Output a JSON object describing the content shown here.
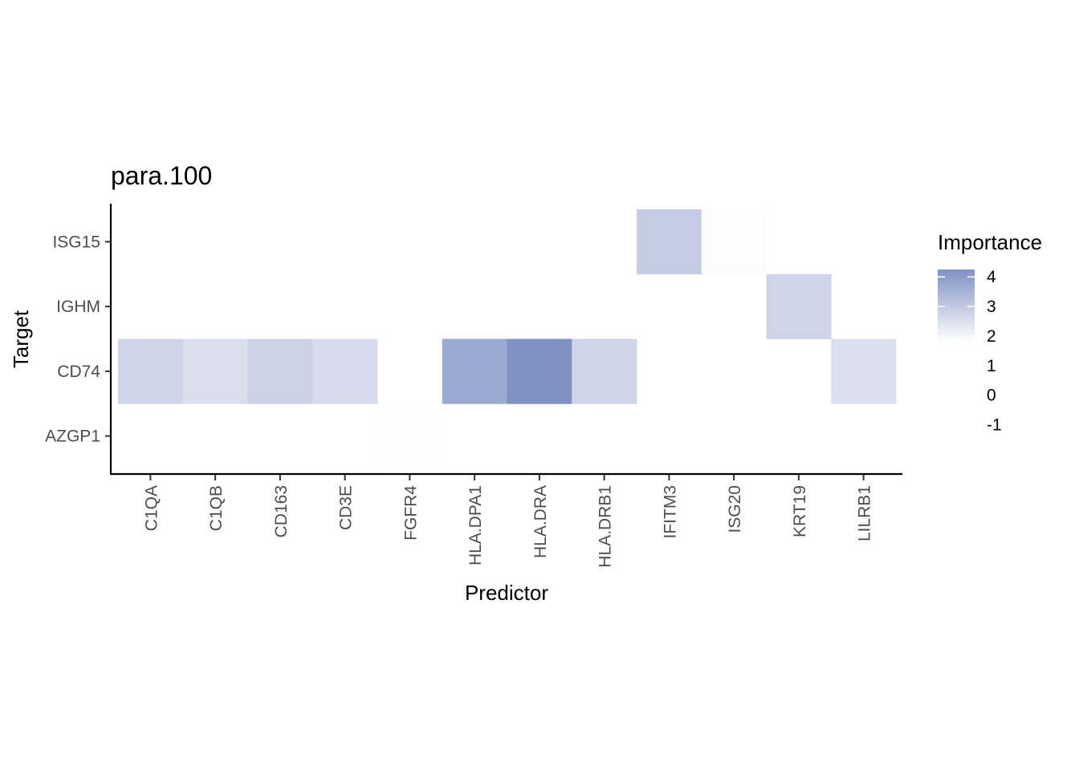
{
  "chart_data": {
    "type": "heatmap",
    "title": "para.100",
    "xlabel": "Predictor",
    "ylabel": "Target",
    "x_categories": [
      "C1QA",
      "C1QB",
      "CD163",
      "CD3E",
      "FGFR4",
      "HLA.DPA1",
      "HLA.DRA",
      "HLA.DRB1",
      "IFITM3",
      "ISG20",
      "KRT19",
      "LILRB1"
    ],
    "y_categories": [
      "AZGP1",
      "CD74",
      "IGHM",
      "ISG15"
    ],
    "cells": [
      {
        "x": "FGFR4",
        "y": "AZGP1",
        "value": 0.05
      },
      {
        "x": "C1QA",
        "y": "CD74",
        "value": 1.6
      },
      {
        "x": "C1QB",
        "y": "CD74",
        "value": 1.25
      },
      {
        "x": "CD163",
        "y": "CD74",
        "value": 1.75
      },
      {
        "x": "CD3E",
        "y": "CD74",
        "value": 1.35
      },
      {
        "x": "HLA.DPA1",
        "y": "CD74",
        "value": 3.3
      },
      {
        "x": "HLA.DRA",
        "y": "CD74",
        "value": 4.25
      },
      {
        "x": "HLA.DRB1",
        "y": "CD74",
        "value": 1.65
      },
      {
        "x": "LILRB1",
        "y": "CD74",
        "value": 1.2
      },
      {
        "x": "KRT19",
        "y": "IGHM",
        "value": 1.65
      },
      {
        "x": "IFITM3",
        "y": "ISG15",
        "value": 2.0
      },
      {
        "x": "ISG20",
        "y": "ISG15",
        "value": 0.1
      }
    ],
    "legend": {
      "title": "Importance",
      "ticks": [
        4,
        3,
        2,
        1,
        0,
        -1
      ],
      "tick_labels": [
        "4",
        "3",
        "2",
        "1",
        "0",
        "-1"
      ],
      "bar_range": [
        1.8,
        4.25
      ],
      "scale_range": [
        -1.5,
        4.25
      ],
      "colors": {
        "low": "#ffffff",
        "high": "#8092c4"
      },
      "placement": "right"
    },
    "grid": false
  }
}
